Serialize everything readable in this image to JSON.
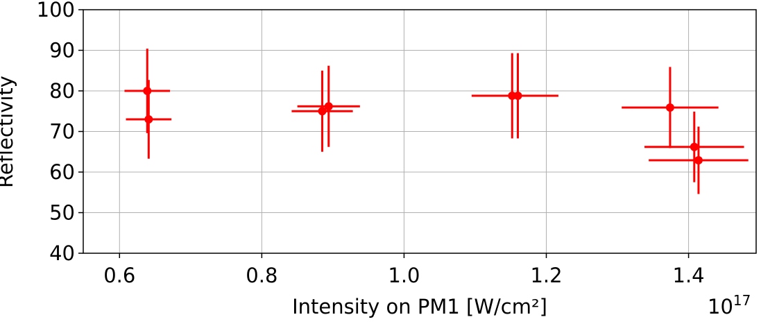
{
  "chart_data": {
    "type": "errorbar_scatter",
    "x_label": "Intensity on PM1 [W/cm²]",
    "y_label": "Reflectivity",
    "offset_text": {
      "base": "10",
      "exponent": "17"
    },
    "xlim": [
      0.549,
      1.495
    ],
    "ylim": [
      40,
      100
    ],
    "xticks": [
      {
        "value": 0.6,
        "label": "0.6"
      },
      {
        "value": 0.8,
        "label": "0.8"
      },
      {
        "value": 1.0,
        "label": "1.0"
      },
      {
        "value": 1.2,
        "label": "1.2"
      },
      {
        "value": 1.4,
        "label": "1.4"
      }
    ],
    "yticks": [
      40,
      50,
      60,
      70,
      80,
      90,
      100
    ],
    "grid": true,
    "series": [
      {
        "color": "#ff0000",
        "x": [
          0.639,
          0.641,
          0.885,
          0.894,
          1.152,
          1.16,
          1.374,
          1.408,
          1.414
        ],
        "values": [
          80.0,
          73.0,
          75.0,
          76.2,
          78.8,
          78.8,
          75.9,
          66.2,
          62.9
        ],
        "xerr": [
          0.032,
          0.032,
          0.043,
          0.044,
          0.057,
          0.057,
          0.068,
          0.07,
          0.07
        ],
        "yerr": [
          10.4,
          9.7,
          10.0,
          10.0,
          10.5,
          10.5,
          10.0,
          8.7,
          8.3
        ]
      }
    ]
  }
}
